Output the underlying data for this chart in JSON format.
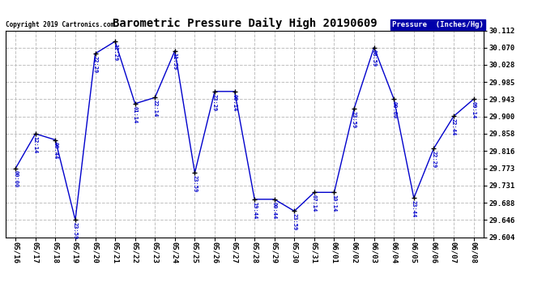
{
  "title": "Barometric Pressure Daily High 20190609",
  "copyright": "Copyright 2019 Cartronics.com",
  "legend_label": "Pressure  (Inches/Hg)",
  "ylim": [
    29.604,
    30.112
  ],
  "yticks": [
    29.604,
    29.646,
    29.688,
    29.731,
    29.773,
    29.816,
    29.858,
    29.9,
    29.943,
    29.985,
    30.028,
    30.07,
    30.112
  ],
  "dates": [
    "05/16",
    "05/17",
    "05/18",
    "05/19",
    "05/20",
    "05/21",
    "05/22",
    "05/23",
    "05/24",
    "05/25",
    "05/26",
    "05/27",
    "05/28",
    "05/29",
    "05/30",
    "05/31",
    "06/01",
    "06/02",
    "06/03",
    "06/04",
    "06/05",
    "06/06",
    "06/07",
    "06/08"
  ],
  "values": [
    29.773,
    29.858,
    29.843,
    29.646,
    30.055,
    30.085,
    29.932,
    29.947,
    30.062,
    29.762,
    29.962,
    29.962,
    29.697,
    29.697,
    29.668,
    29.714,
    29.714,
    29.92,
    30.07,
    29.943,
    29.7,
    29.822,
    29.901,
    29.943
  ],
  "times": [
    "00:00",
    "12:14",
    "00:44",
    "23:59",
    "22:29",
    "12:29",
    "01:14",
    "22:14",
    "11:59",
    "23:59",
    "23:29",
    "00:14",
    "19:44",
    "00:44",
    "23:59",
    "07:14",
    "10:14",
    "23:59",
    "08:59",
    "00:00",
    "23:44",
    "22:29",
    "22:44",
    "09:14"
  ],
  "line_color": "#0000cc",
  "marker_color": "#000000",
  "annotation_color": "#0000cc",
  "bg_color": "#ffffff",
  "grid_color": "#c0c0c0",
  "legend_bg": "#0000aa",
  "legend_fg": "#ffffff",
  "title_color": "#000000",
  "copyright_color": "#000000"
}
